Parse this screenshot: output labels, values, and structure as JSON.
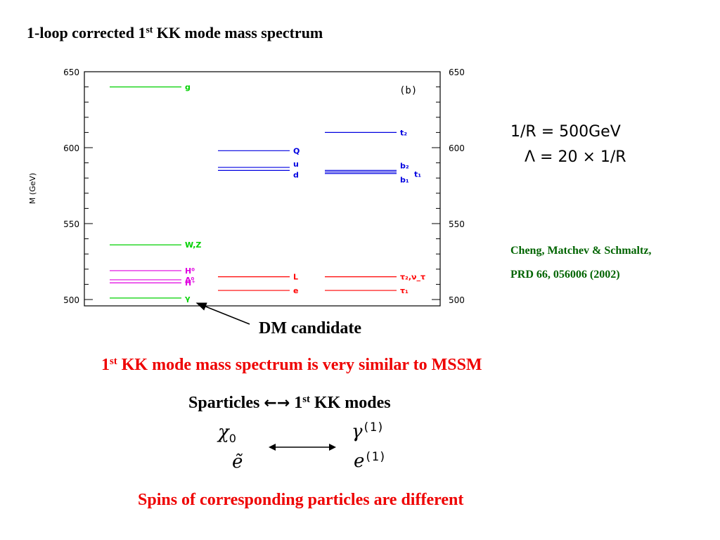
{
  "slide": {
    "title_main": "1-loop corrected 1",
    "title_sup": "st",
    "title_rest": " KK mode mass spectrum",
    "params_line1": "1/R = 500GeV",
    "params_line2": "Λ = 20 × 1/R",
    "citation_line1": "Cheng, Matchev & Schmaltz,",
    "citation_line2": "PRD 66, 056006 (2002)",
    "dm_label": "DM candidate",
    "similar_main": "1",
    "similar_sup": "st",
    "similar_rest": " KK mode mass spectrum is very similar to MSSM",
    "sparticles_left": "Sparticles",
    "sparticles_arrows": "←→",
    "sparticles_num": " 1",
    "sparticles_sup": "st",
    "sparticles_rest": " KK modes",
    "chi_symbol": "χ",
    "chi_sub": "0",
    "etilde_symbol": "ẽ",
    "gamma_symbol": "γ",
    "gamma_sup": "(1)",
    "e_symbol": "e",
    "e_sup": "(1)",
    "spins_text": "Spins of corresponding particles are different"
  },
  "chart_data": {
    "type": "level_diagram",
    "title": "",
    "panel_label": "(b)",
    "ylabel": "M (GeV)",
    "ylim": [
      500,
      650
    ],
    "yticks": [
      500,
      550,
      600,
      650
    ],
    "columns": [
      "bosons",
      "quarks_leptons",
      "third_generation"
    ],
    "colors": {
      "green": "#00d000",
      "magenta": "#e000e0",
      "blue": "#0000e0",
      "red": "#ff0000"
    },
    "levels": [
      {
        "column": 0,
        "mass": 640,
        "label": "g",
        "color": "green"
      },
      {
        "column": 0,
        "mass": 536,
        "label": "W,Z",
        "color": "green"
      },
      {
        "column": 0,
        "mass": 519,
        "label": "H⁰",
        "color": "magenta"
      },
      {
        "column": 0,
        "mass": 513,
        "label": "A⁰",
        "color": "magenta"
      },
      {
        "column": 0,
        "mass": 511,
        "label": "H⁺",
        "color": "magenta"
      },
      {
        "column": 0,
        "mass": 501,
        "label": "γ",
        "color": "green"
      },
      {
        "column": 1,
        "mass": 598,
        "label": "Q",
        "color": "blue"
      },
      {
        "column": 1,
        "mass": 587,
        "label": "u",
        "color": "blue"
      },
      {
        "column": 1,
        "mass": 585,
        "label": "d",
        "color": "blue"
      },
      {
        "column": 1,
        "mass": 515,
        "label": "L",
        "color": "red"
      },
      {
        "column": 1,
        "mass": 506,
        "label": "e",
        "color": "red"
      },
      {
        "column": 2,
        "mass": 610,
        "label": "t₂",
        "color": "blue"
      },
      {
        "column": 2,
        "mass": 585,
        "label": "b₂",
        "color": "blue"
      },
      {
        "column": 2,
        "mass": 584,
        "label": "t₁",
        "color": "blue"
      },
      {
        "column": 2,
        "mass": 583,
        "label": "b₁",
        "color": "blue"
      },
      {
        "column": 2,
        "mass": 515,
        "label": "τ₂,ν_τ",
        "color": "red"
      },
      {
        "column": 2,
        "mass": 506,
        "label": "τ₁",
        "color": "red"
      }
    ]
  }
}
